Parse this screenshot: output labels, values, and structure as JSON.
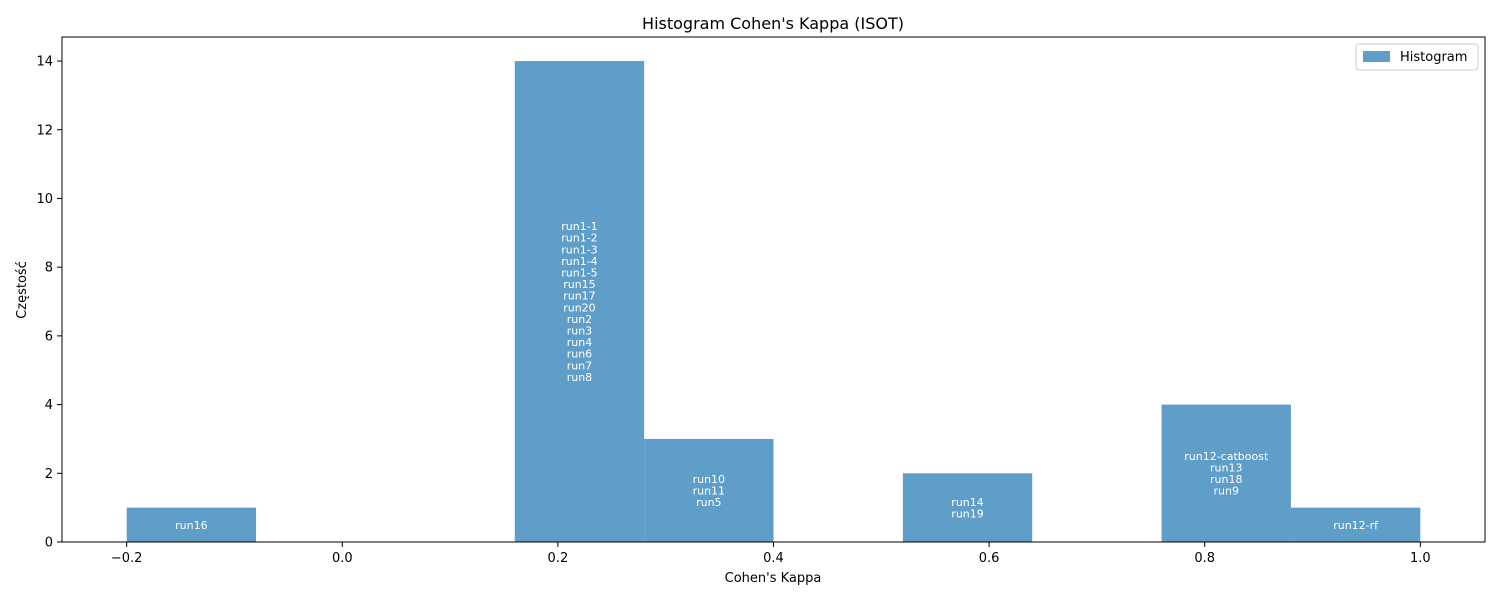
{
  "chart_data": {
    "type": "bar",
    "title": "Histogram Cohen's Kappa (ISOT)",
    "xlabel": "Cohen's Kappa",
    "ylabel": "Częstość",
    "xlim": [
      -0.26,
      1.06
    ],
    "ylim": [
      0,
      14.7
    ],
    "xticks": [
      -0.2,
      0.0,
      0.2,
      0.4,
      0.6,
      0.8,
      1.0
    ],
    "xtick_labels": [
      "−0.2",
      "0.0",
      "0.2",
      "0.4",
      "0.6",
      "0.8",
      "1.0"
    ],
    "yticks": [
      0,
      2,
      4,
      6,
      8,
      10,
      12,
      14
    ],
    "ytick_labels": [
      "0",
      "2",
      "4",
      "6",
      "8",
      "10",
      "12",
      "14"
    ],
    "legend": {
      "label": "Histogram",
      "placement": "top-right"
    },
    "bar_color": "#5f9ec9",
    "bins": [
      {
        "x0": -0.2,
        "x1": -0.08,
        "count": 1,
        "runs": [
          "run16"
        ]
      },
      {
        "x0": -0.08,
        "x1": 0.04,
        "count": 0,
        "runs": []
      },
      {
        "x0": 0.04,
        "x1": 0.16,
        "count": 0,
        "runs": []
      },
      {
        "x0": 0.16,
        "x1": 0.28,
        "count": 14,
        "runs": [
          "run1-1",
          "run1-2",
          "run1-3",
          "run1-4",
          "run1-5",
          "run15",
          "run17",
          "run20",
          "run2",
          "run3",
          "run4",
          "run6",
          "run7",
          "run8"
        ]
      },
      {
        "x0": 0.28,
        "x1": 0.4,
        "count": 3,
        "runs": [
          "run10",
          "run11",
          "run5"
        ]
      },
      {
        "x0": 0.4,
        "x1": 0.52,
        "count": 0,
        "runs": []
      },
      {
        "x0": 0.52,
        "x1": 0.64,
        "count": 2,
        "runs": [
          "run14",
          "run19"
        ]
      },
      {
        "x0": 0.64,
        "x1": 0.76,
        "count": 0,
        "runs": []
      },
      {
        "x0": 0.76,
        "x1": 0.88,
        "count": 4,
        "runs": [
          "run12-catboost",
          "run13",
          "run18",
          "run9"
        ]
      },
      {
        "x0": 0.88,
        "x1": 1.0,
        "count": 1,
        "runs": [
          "run12-rf"
        ]
      }
    ]
  }
}
